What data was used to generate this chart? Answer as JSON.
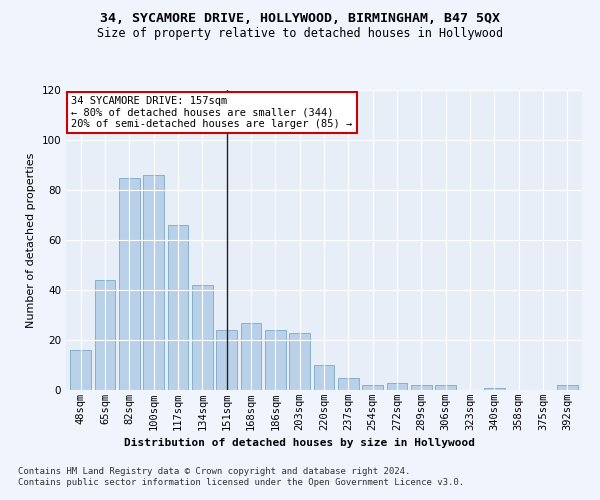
{
  "title": "34, SYCAMORE DRIVE, HOLLYWOOD, BIRMINGHAM, B47 5QX",
  "subtitle": "Size of property relative to detached houses in Hollywood",
  "xlabel_bottom": "Distribution of detached houses by size in Hollywood",
  "ylabel": "Number of detached properties",
  "categories": [
    "48sqm",
    "65sqm",
    "82sqm",
    "100sqm",
    "117sqm",
    "134sqm",
    "151sqm",
    "168sqm",
    "186sqm",
    "203sqm",
    "220sqm",
    "237sqm",
    "254sqm",
    "272sqm",
    "289sqm",
    "306sqm",
    "323sqm",
    "340sqm",
    "358sqm",
    "375sqm",
    "392sqm"
  ],
  "values": [
    16,
    44,
    85,
    86,
    66,
    42,
    24,
    27,
    24,
    23,
    10,
    5,
    2,
    3,
    2,
    2,
    0,
    1,
    0,
    0,
    2
  ],
  "bar_color": "#b8d0e8",
  "bar_edge_color": "#7aaac8",
  "highlight_index": 6,
  "highlight_line_color": "#222222",
  "ylim": [
    0,
    120
  ],
  "yticks": [
    0,
    20,
    40,
    60,
    80,
    100,
    120
  ],
  "annotation_text": "34 SYCAMORE DRIVE: 157sqm\n← 80% of detached houses are smaller (344)\n20% of semi-detached houses are larger (85) →",
  "annotation_box_color": "#ffffff",
  "annotation_box_edge_color": "#cc0000",
  "background_color": "#e8eef8",
  "grid_color": "#ffffff",
  "footer_text": "Contains HM Land Registry data © Crown copyright and database right 2024.\nContains public sector information licensed under the Open Government Licence v3.0.",
  "title_fontsize": 9.5,
  "subtitle_fontsize": 8.5,
  "ylabel_fontsize": 8,
  "tick_fontsize": 7.5,
  "annotation_fontsize": 7.5,
  "xlabel_bottom_fontsize": 8,
  "footer_fontsize": 6.5
}
